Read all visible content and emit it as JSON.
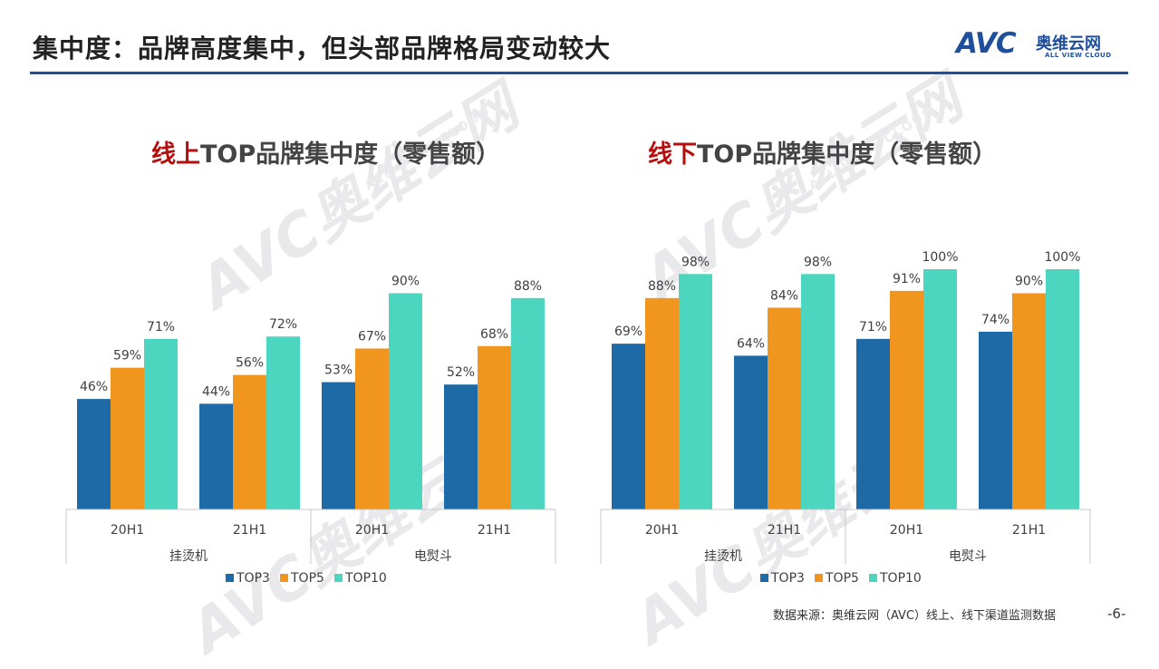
{
  "header": {
    "title": "集中度：品牌高度集中，但头部品牌格局变动较大",
    "logo_text": "AVC",
    "logo_cn": "奥维云网",
    "logo_en": "ALL VIEW CLOUD"
  },
  "watermark": {
    "text": "AVC奥维云网",
    "sub": "ALL VIEW CLOUD"
  },
  "colors": {
    "TOP3": "#1d6aa6",
    "TOP5": "#f0961f",
    "TOP10": "#4dd6bf",
    "accent_red": "#b40f0f",
    "brand_blue": "#1f4e9c"
  },
  "legend": [
    "TOP3",
    "TOP5",
    "TOP10"
  ],
  "chart_data": [
    {
      "type": "bar",
      "title": "线上TOP品牌集中度（零售额）",
      "title_highlight": "线上",
      "title_rest": "TOP品牌集中度（零售额）",
      "categories": [
        "20H1",
        "21H1",
        "20H1",
        "21H1"
      ],
      "groups": [
        "挂烫机",
        "电熨斗"
      ],
      "series": [
        {
          "name": "TOP3",
          "values": [
            46,
            44,
            53,
            52
          ]
        },
        {
          "name": "TOP5",
          "values": [
            59,
            56,
            67,
            68
          ]
        },
        {
          "name": "TOP10",
          "values": [
            71,
            72,
            90,
            88
          ]
        }
      ],
      "ylim": [
        0,
        100
      ],
      "value_suffix": "%"
    },
    {
      "type": "bar",
      "title": "线下TOP品牌集中度（零售额）",
      "title_highlight": "线下",
      "title_rest": "TOP品牌集中度（零售额）",
      "categories": [
        "20H1",
        "21H1",
        "20H1",
        "21H1"
      ],
      "groups": [
        "挂烫机",
        "电熨斗"
      ],
      "series": [
        {
          "name": "TOP3",
          "values": [
            69,
            64,
            71,
            74
          ]
        },
        {
          "name": "TOP5",
          "values": [
            88,
            84,
            91,
            90
          ]
        },
        {
          "name": "TOP10",
          "values": [
            98,
            98,
            100,
            100
          ]
        }
      ],
      "ylim": [
        0,
        100
      ],
      "value_suffix": "%"
    }
  ],
  "footer": {
    "source": "数据来源：奥维云网（AVC）线上、线下渠道监测数据",
    "page": "-6-"
  }
}
